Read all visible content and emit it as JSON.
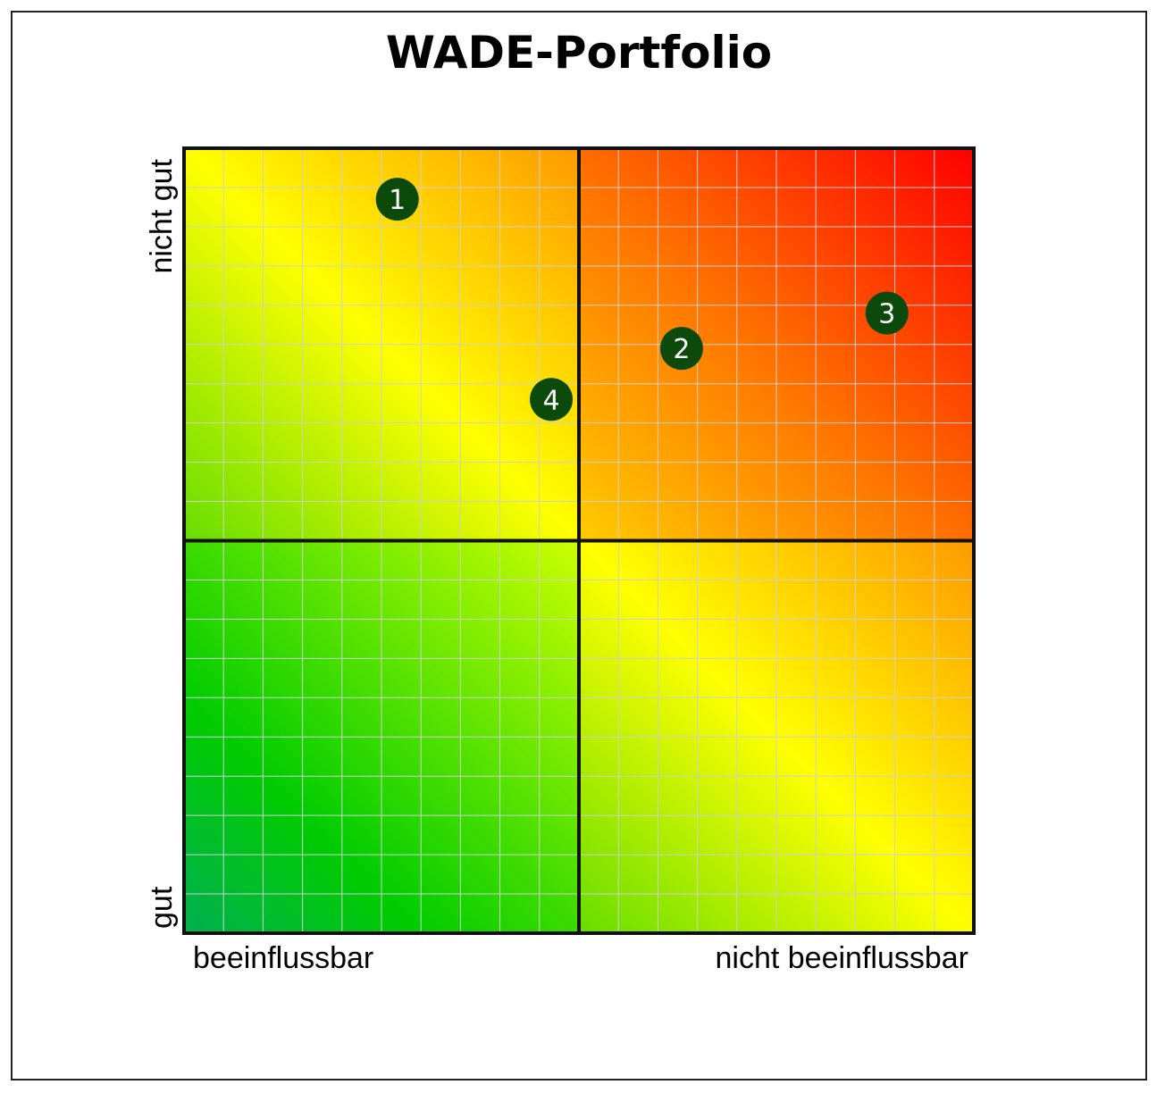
{
  "chart_data": {
    "type": "scatter",
    "title": "WADE-Portfolio",
    "x_tick_labels": [
      "beeinflussbar",
      "nicht beeinflussbar"
    ],
    "y_tick_labels": [
      "gut",
      "nicht gut"
    ],
    "xlim": [
      0,
      10
    ],
    "ylim": [
      0,
      10
    ],
    "grid": true,
    "quadrant_dividers": {
      "x": 5,
      "y": 5
    },
    "points": [
      {
        "label": "1",
        "x": 2.7,
        "y": 9.35
      },
      {
        "label": "2",
        "x": 6.3,
        "y": 7.45
      },
      {
        "label": "3",
        "x": 8.9,
        "y": 7.9
      },
      {
        "label": "4",
        "x": 4.65,
        "y": 6.8
      }
    ],
    "colors": {
      "marker": "#0b4a0b",
      "marker_text": "#ffffff",
      "divider": "#111111",
      "grid": "#cfcfcf",
      "gradient_green": "#00b050",
      "gradient_lightgreen": "#00cc00",
      "gradient_yellow": "#ffff00",
      "gradient_orange": "#ff9900",
      "gradient_red": "#ff0000"
    }
  }
}
